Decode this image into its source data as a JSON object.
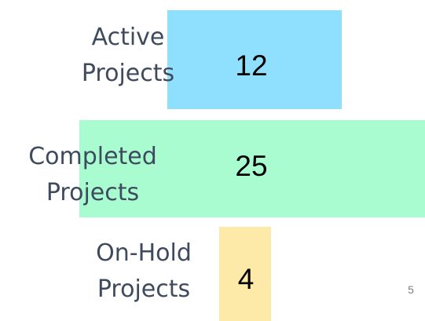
{
  "items": [
    {
      "label": [
        "Active",
        "Projects"
      ],
      "value": 12
    },
    {
      "label": [
        "Completed",
        "Projects"
      ],
      "value": 25
    },
    {
      "label": [
        "On-Hold",
        "Projects"
      ],
      "value": 4
    }
  ],
  "page_number": 5
}
